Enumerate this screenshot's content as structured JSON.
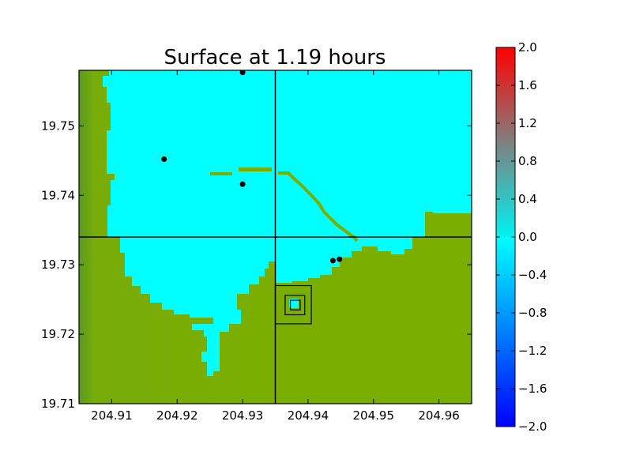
{
  "chart_data": {
    "type": "heatmap",
    "title": "Surface at 1.19 hours",
    "xlabel": "",
    "ylabel": "",
    "xlim": [
      204.905,
      204.965
    ],
    "ylim": [
      19.71,
      19.758
    ],
    "x_ticks": [
      {
        "value": 204.91,
        "label": "204.91"
      },
      {
        "value": 204.92,
        "label": "204.92"
      },
      {
        "value": 204.93,
        "label": "204.93"
      },
      {
        "value": 204.94,
        "label": "204.94"
      },
      {
        "value": 204.95,
        "label": "204.95"
      },
      {
        "value": 204.96,
        "label": "204.96"
      }
    ],
    "y_ticks": [
      {
        "value": 19.71,
        "label": "19.71"
      },
      {
        "value": 19.72,
        "label": "19.72"
      },
      {
        "value": 19.73,
        "label": "19.73"
      },
      {
        "value": 19.74,
        "label": "19.74"
      },
      {
        "value": 19.75,
        "label": "19.75"
      }
    ],
    "colorbar": {
      "range": [
        -2.0,
        2.0
      ],
      "ticks": [
        {
          "value": 2.0,
          "label": "2.0"
        },
        {
          "value": 1.6,
          "label": "1.6"
        },
        {
          "value": 1.2,
          "label": "1.2"
        },
        {
          "value": 0.8,
          "label": "0.8"
        },
        {
          "value": 0.4,
          "label": "0.4"
        },
        {
          "value": 0.0,
          "label": "0.0"
        },
        {
          "value": -0.4,
          "label": "−0.4"
        },
        {
          "value": -0.8,
          "label": "−0.8"
        },
        {
          "value": -1.2,
          "label": "−1.2"
        },
        {
          "value": -1.6,
          "label": "−1.6"
        },
        {
          "value": -2.0,
          "label": "−2.0"
        }
      ],
      "colors": [
        "#0000ff",
        "#00ffff",
        "#ff0000"
      ]
    },
    "colors": {
      "water": "#00ffff",
      "land": "#7aae00",
      "land_dark": "#5a9a20"
    },
    "gauges": [
      {
        "x": 204.93,
        "y": 19.7577
      },
      {
        "x": 204.918,
        "y": 19.7452
      },
      {
        "x": 204.93,
        "y": 19.7416
      },
      {
        "x": 204.9438,
        "y": 19.7306
      },
      {
        "x": 204.9448,
        "y": 19.7308
      }
    ],
    "grid_lines": {
      "x": [
        204.935
      ],
      "y": [
        19.734
      ]
    },
    "regions": [
      {
        "x": [
          204.935,
          204.9405
        ],
        "y": [
          19.7215,
          19.727
        ]
      },
      {
        "x": [
          204.9365,
          204.9395
        ],
        "y": [
          19.7228,
          19.7256
        ]
      },
      {
        "x": [
          204.9373,
          204.9388
        ],
        "y": [
          19.7235,
          19.7249
        ]
      }
    ],
    "grid": false,
    "legend": "none"
  }
}
